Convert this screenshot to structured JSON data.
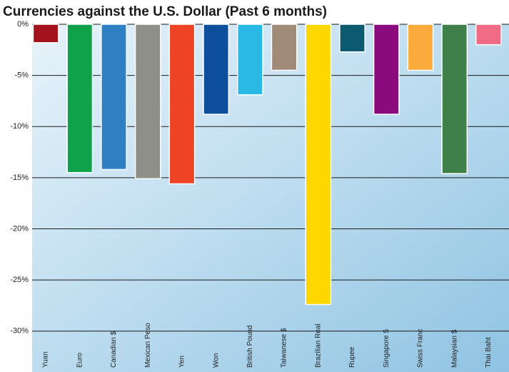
{
  "chart_data": {
    "type": "bar",
    "title": "Currencies against the U.S. Dollar (Past 6 months)",
    "categories": [
      "Yuan",
      "Euro",
      "Canadian $",
      "Mexican Peso",
      "Yen",
      "Won",
      "British Pound",
      "Taiwanese $",
      "Brazilian Real",
      "Rupee",
      "Singapore $",
      "Swiss Franc",
      "Malaysian $",
      "Thai Baht"
    ],
    "values": [
      -1.8,
      -14.5,
      -14.2,
      -15.1,
      -15.6,
      -8.8,
      -6.9,
      -4.5,
      -27.4,
      -2.7,
      -8.8,
      -4.5,
      -14.6,
      -2.0
    ],
    "colors": [
      "#a3131b",
      "#0fa24a",
      "#2f7fc4",
      "#8f8f8a",
      "#ee4324",
      "#0d4f9c",
      "#2ab9e4",
      "#a08a78",
      "#ffd700",
      "#0b5a70",
      "#8b0b7f",
      "#fbab3b",
      "#3f7f49",
      "#f06b85"
    ],
    "ylim": [
      -34,
      0
    ],
    "yticks": [
      {
        "value": 0,
        "label": "0%"
      },
      {
        "value": -5,
        "label": "-5%"
      },
      {
        "value": -10,
        "label": "-10%"
      },
      {
        "value": -15,
        "label": "-15%"
      },
      {
        "value": -20,
        "label": "-20%"
      },
      {
        "value": -25,
        "label": "-25%"
      },
      {
        "value": -30,
        "label": "-30%"
      }
    ],
    "grid": true
  }
}
